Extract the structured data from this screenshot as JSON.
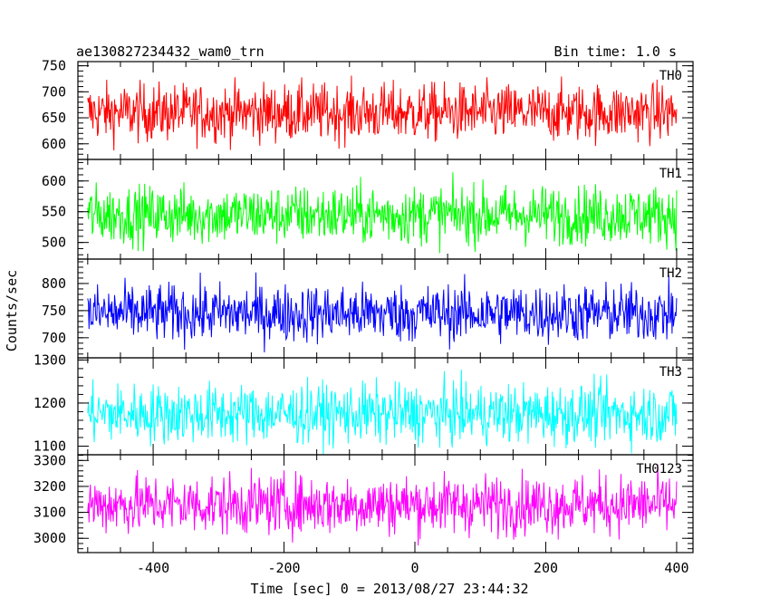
{
  "header": {
    "title": "ae130827234432_wam0_trn",
    "bin_time": "Bin time: 1.0 s"
  },
  "chart_data": {
    "type": "line",
    "xlabel": "Time [sec] 0 = 2013/08/27 23:44:32",
    "ylabel": "Counts/sec",
    "xlim": [
      -515,
      425
    ],
    "x_range": [
      -500,
      400
    ],
    "x_ticks": [
      -400,
      -200,
      0,
      200,
      400
    ],
    "grid": false,
    "panels": [
      {
        "name": "TH0",
        "color": "#ff0000",
        "ylim": [
          570,
          758
        ],
        "yticks": [
          600,
          650,
          700,
          750
        ],
        "mean": 660,
        "amplitude": 28,
        "min": 575,
        "max": 758
      },
      {
        "name": "TH1",
        "color": "#00ff00",
        "ylim": [
          473,
          635
        ],
        "yticks": [
          500,
          550,
          600
        ],
        "mean": 545,
        "amplitude": 24,
        "min": 476,
        "max": 620
      },
      {
        "name": "TH2",
        "color": "#0000ff",
        "ylim": [
          663,
          845
        ],
        "yticks": [
          700,
          750,
          800
        ],
        "mean": 745,
        "amplitude": 27,
        "min": 665,
        "max": 845
      },
      {
        "name": "TH3",
        "color": "#00ffff",
        "ylim": [
          1080,
          1305
        ],
        "yticks": [
          1100,
          1200,
          1300
        ],
        "mean": 1175,
        "amplitude": 35,
        "min": 1080,
        "max": 1295
      },
      {
        "name": "TH0123",
        "color": "#ff00ff",
        "ylim": [
          2945,
          3322
        ],
        "yticks": [
          3000,
          3100,
          3200,
          3300
        ],
        "mean": 3130,
        "amplitude": 58,
        "min": 2950,
        "max": 3300
      }
    ]
  }
}
